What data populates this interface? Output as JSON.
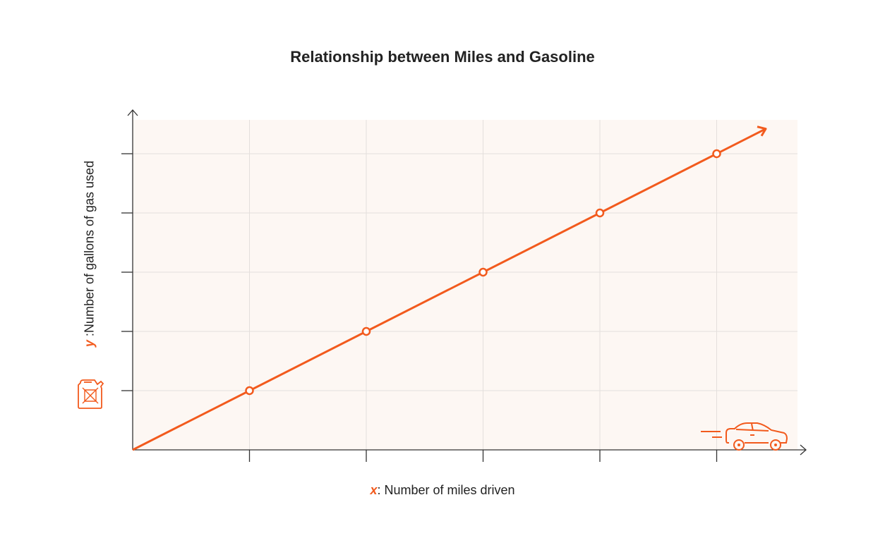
{
  "chart_data": {
    "type": "line",
    "title": "Relationship between Miles and Gasoline",
    "xlabel_var": "x",
    "xlabel": "Number of miles driven",
    "ylabel_var": "y",
    "ylabel": "Number of gallons of gas used",
    "x": [
      0,
      1,
      2,
      3,
      4,
      5
    ],
    "y": [
      0,
      1,
      2,
      3,
      4,
      5
    ],
    "markers_at": [
      1,
      2,
      3,
      4,
      5
    ],
    "xlim": [
      0,
      5.7
    ],
    "ylim": [
      0,
      5.6
    ],
    "grid": true,
    "tick_labels": false,
    "line_extends_with_arrow": true,
    "colors": {
      "line": "#f25a1d",
      "background": "#fdf7f3",
      "grid": "#e4dfdc",
      "axis": "#333333"
    },
    "icons": {
      "y_axis": "gas-can-icon",
      "x_axis": "car-icon"
    }
  }
}
